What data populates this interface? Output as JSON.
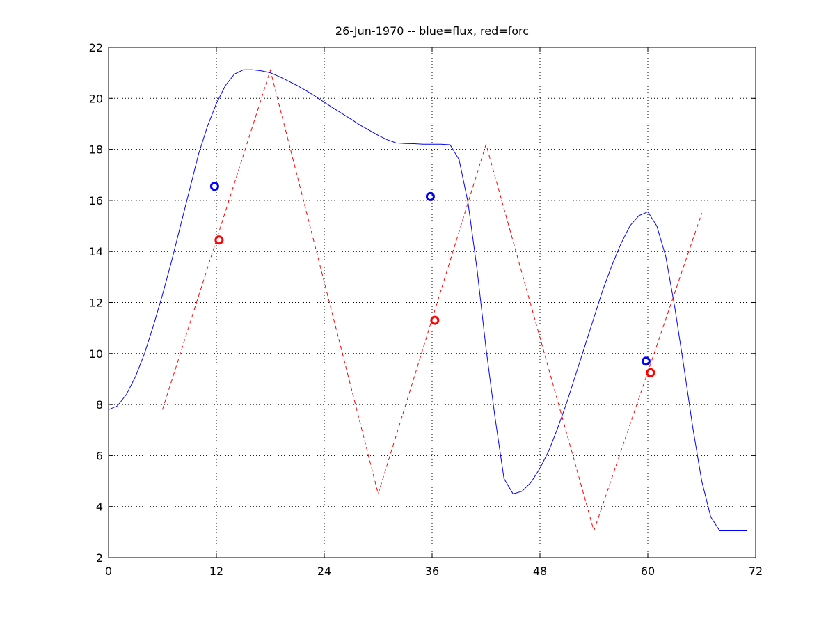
{
  "chart_data": {
    "type": "line",
    "title": "26-Jun-1970 -- blue=flux, red=forc",
    "xlabel": "",
    "ylabel": "",
    "xlim": [
      0,
      72
    ],
    "ylim": [
      2,
      22
    ],
    "xticks": [
      0,
      12,
      24,
      36,
      48,
      60,
      72
    ],
    "yticks": [
      2,
      4,
      6,
      8,
      10,
      12,
      14,
      16,
      18,
      20,
      22
    ],
    "xtick_labels": [
      "0",
      "12",
      "24",
      "36",
      "48",
      "60",
      "72"
    ],
    "ytick_labels": [
      "2",
      "4",
      "6",
      "8",
      "10",
      "12",
      "14",
      "16",
      "18",
      "20",
      "22"
    ],
    "grid": true,
    "series": [
      {
        "style": "solid",
        "color": "#0000ff",
        "x": [
          0,
          1,
          2,
          3,
          4,
          5,
          6,
          7,
          8,
          9,
          10,
          11,
          12,
          13,
          14,
          15,
          16,
          17,
          18,
          19,
          20,
          21,
          22,
          23,
          24,
          25,
          26,
          27,
          28,
          29,
          30,
          31,
          32,
          33,
          34,
          35,
          36,
          37,
          38,
          39,
          40,
          41,
          42,
          43,
          44,
          45,
          46,
          47,
          48,
          49,
          50,
          51,
          52,
          53,
          54,
          55,
          56,
          57,
          58,
          59,
          60,
          61,
          62,
          63,
          64,
          65,
          66,
          67,
          68,
          69,
          70,
          71
        ],
        "y": [
          7.8,
          7.95,
          8.4,
          9.1,
          10.0,
          11.1,
          12.3,
          13.6,
          15.0,
          16.4,
          17.8,
          18.9,
          19.8,
          20.5,
          20.95,
          21.12,
          21.12,
          21.08,
          21.0,
          20.85,
          20.68,
          20.5,
          20.3,
          20.08,
          19.85,
          19.62,
          19.4,
          19.18,
          18.95,
          18.75,
          18.55,
          18.38,
          18.25,
          18.23,
          18.22,
          18.2,
          18.2,
          18.2,
          18.18,
          17.6,
          15.9,
          13.3,
          10.2,
          7.5,
          5.1,
          4.5,
          4.6,
          4.95,
          5.5,
          6.2,
          7.1,
          8.1,
          9.2,
          10.3,
          11.4,
          12.5,
          13.45,
          14.3,
          15.0,
          15.4,
          15.55,
          15.0,
          13.8,
          11.8,
          9.5,
          7.1,
          5.0,
          3.6,
          3.05,
          3.05,
          3.05,
          3.05
        ]
      },
      {
        "style": "dashed",
        "color": "#ff0000",
        "x": [
          6,
          18,
          30,
          42,
          54,
          66
        ],
        "y": [
          7.8,
          21.1,
          4.5,
          18.2,
          3.05,
          15.5
        ]
      },
      {
        "style": "markers",
        "color": "#0000ff",
        "x": [
          11.8,
          35.8,
          59.8
        ],
        "y": [
          16.55,
          16.15,
          9.7
        ]
      },
      {
        "style": "markers",
        "color": "#ff0000",
        "x": [
          12.3,
          36.3,
          60.3
        ],
        "y": [
          14.45,
          11.3,
          9.25
        ]
      }
    ]
  }
}
